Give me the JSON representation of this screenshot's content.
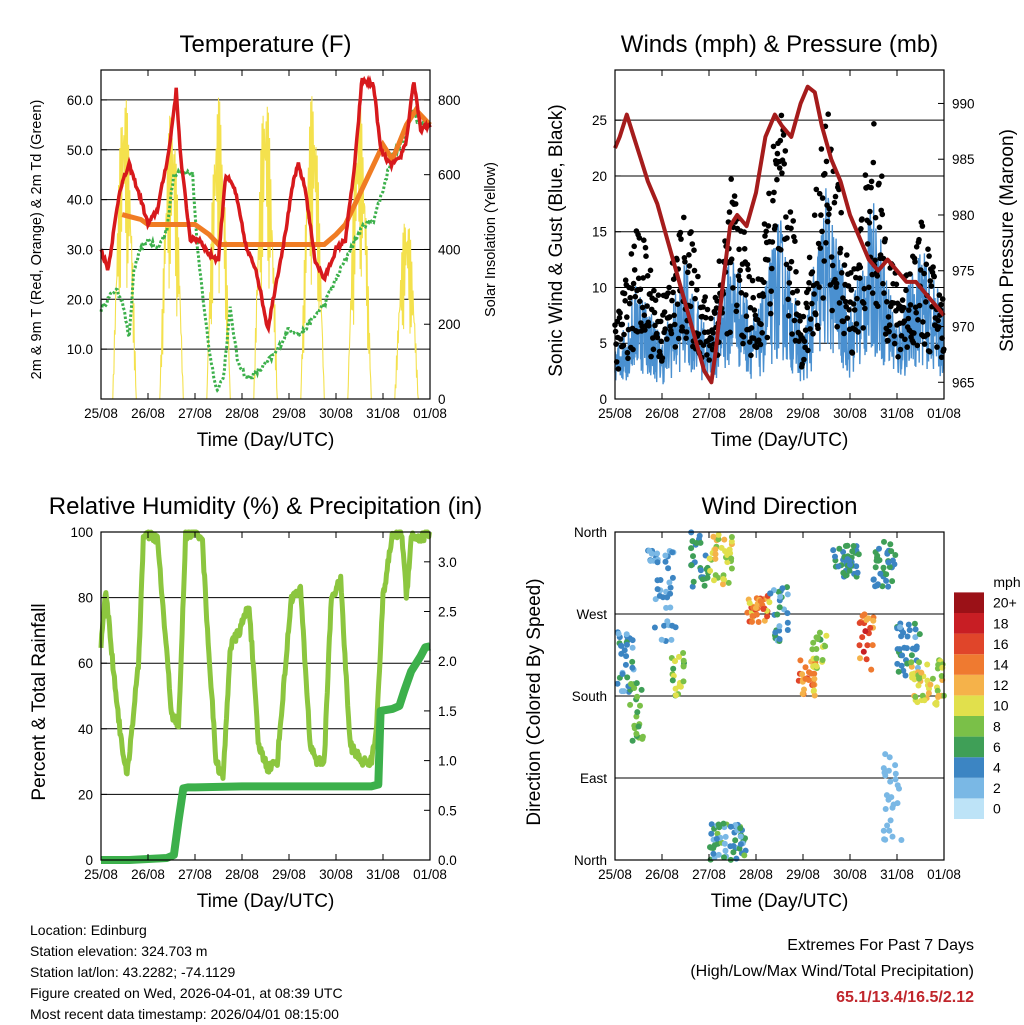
{
  "chart_data": [
    {
      "id": "temperature",
      "type": "line",
      "title": "Temperature (F)",
      "xlabel": "Time (Day/UTC)",
      "ylabel_left": "2m & 9m T (Red, Orange) & 2m Td (Green)",
      "ylabel_right": "Solar Insolation (Yellow)",
      "x_ticks": [
        "25/08",
        "26/08",
        "27/08",
        "28/08",
        "29/08",
        "30/08",
        "31/08",
        "01/08"
      ],
      "ylim": [
        0,
        66
      ],
      "y_ticks": [
        "10.0",
        "20.0",
        "30.0",
        "40.0",
        "50.0",
        "60.0"
      ],
      "y_tick_values": [
        10,
        20,
        30,
        40,
        50,
        60
      ],
      "y2lim": [
        0,
        880
      ],
      "y2_ticks": [
        "0",
        "200",
        "400",
        "600",
        "800"
      ],
      "y2_tick_values": [
        0,
        200,
        400,
        600,
        800
      ],
      "series": [
        {
          "name": "2m T",
          "color": "#d7191c",
          "x": [
            0,
            0.15,
            0.4,
            0.6,
            0.85,
            1.0,
            1.2,
            1.45,
            1.6,
            1.7,
            1.9,
            2.1,
            2.3,
            2.5,
            2.65,
            2.85,
            3.1,
            3.3,
            3.55,
            3.7,
            3.9,
            4.1,
            4.2,
            4.35,
            4.55,
            4.75,
            5.0,
            5.2,
            5.4,
            5.55,
            5.8,
            5.95,
            6.15,
            6.35,
            6.5,
            6.65,
            6.8,
            7.0
          ],
          "values": [
            30,
            26,
            42,
            47,
            40,
            35,
            38,
            50,
            62,
            48,
            32,
            32,
            29,
            28,
            45,
            42,
            30,
            26,
            14,
            22,
            32,
            44,
            47,
            42,
            28,
            24,
            30,
            32,
            47,
            64,
            63,
            50,
            47,
            48,
            52,
            64,
            54,
            55
          ]
        },
        {
          "name": "9m T",
          "color": "#f07c23",
          "x": [
            0.45,
            0.85,
            1.0,
            2.0,
            2.3,
            2.5,
            4.75,
            5.0,
            5.2,
            6.0,
            6.2,
            6.5,
            6.7,
            7.0
          ],
          "values": [
            37,
            36,
            35,
            35,
            33,
            31,
            31,
            33,
            35,
            51,
            48,
            55,
            58,
            55
          ]
        },
        {
          "name": "2m Td",
          "color": "#3cb04b",
          "x": [
            0,
            0.15,
            0.3,
            0.45,
            0.6,
            0.7,
            0.85,
            1.0,
            1.2,
            1.4,
            1.55,
            1.7,
            1.95,
            2.05,
            2.2,
            2.3,
            2.45,
            2.6,
            2.75,
            2.9,
            3.1,
            3.4,
            3.7,
            4.0,
            4.25,
            4.5,
            4.75,
            5.0,
            5.3,
            5.6,
            5.8,
            6.0,
            6.2,
            6.45,
            6.6,
            6.8,
            7.0
          ],
          "values": [
            18,
            20,
            22,
            20,
            12,
            26,
            30,
            32,
            30,
            34,
            45,
            46,
            45,
            30,
            18,
            10,
            2,
            4,
            18,
            8,
            4,
            6,
            9,
            14,
            13,
            16,
            19,
            24,
            30,
            35,
            36,
            42,
            49,
            52,
            58,
            55,
            55
          ]
        },
        {
          "name": "Solar Insolation",
          "color": "#f4e14d",
          "x": [
            0.25,
            0.5,
            0.75,
            1.25,
            1.5,
            1.75,
            2.25,
            2.5,
            2.75,
            3.25,
            3.5,
            3.75,
            4.25,
            4.5,
            4.75,
            5.25,
            5.5,
            5.75,
            6.25,
            6.5,
            6.75
          ],
          "values": [
            0,
            830,
            0,
            0,
            780,
            0,
            0,
            810,
            0,
            0,
            830,
            0,
            0,
            820,
            0,
            0,
            790,
            0,
            0,
            500,
            0
          ]
        }
      ]
    },
    {
      "id": "winds",
      "type": "scatter",
      "title": "Winds (mph) & Pressure (mb)",
      "xlabel": "Time (Day/UTC)",
      "ylabel_left": "Sonic Wind & Gust (Blue, Black)",
      "ylabel_right": "Station Pressure (Maroon)",
      "x_ticks": [
        "25/08",
        "26/08",
        "27/08",
        "28/08",
        "29/08",
        "30/08",
        "31/08",
        "01/08"
      ],
      "ylim": [
        0,
        29.5
      ],
      "y_ticks": [
        "0",
        "5",
        "10",
        "15",
        "20",
        "25"
      ],
      "y_tick_values": [
        0,
        5,
        10,
        15,
        20,
        25
      ],
      "y2lim": [
        963.5,
        993
      ],
      "y2_ticks": [
        "965",
        "970",
        "975",
        "980",
        "985",
        "990"
      ],
      "y2_tick_values": [
        965,
        970,
        975,
        980,
        985,
        990
      ],
      "series": [
        {
          "name": "Sonic Wind",
          "color": "#4a90d0",
          "x": [
            0,
            0.5,
            1.0,
            1.5,
            2.0,
            2.5,
            3.0,
            3.5,
            4.0,
            4.5,
            5.0,
            5.5,
            6.0,
            6.5,
            7.0
          ],
          "values": [
            3,
            8,
            4,
            9,
            4,
            10,
            5,
            12,
            4,
            14,
            6,
            13,
            5,
            10,
            6
          ]
        },
        {
          "name": "Gust",
          "color": "#000000",
          "x": [
            0,
            0.5,
            1.0,
            1.5,
            2.0,
            2.5,
            3.0,
            3.5,
            4.0,
            4.5,
            5.0,
            5.5,
            6.0,
            6.5,
            7.0
          ],
          "values": [
            6,
            14,
            8,
            15,
            7,
            18,
            8,
            24,
            7,
            24,
            10,
            22,
            9,
            14,
            8
          ]
        },
        {
          "name": "Station Pressure",
          "color": "#a51c1c",
          "x": [
            0,
            0.1,
            0.25,
            0.4,
            0.55,
            0.7,
            0.9,
            1.1,
            1.3,
            1.5,
            1.7,
            1.9,
            2.05,
            2.15,
            2.3,
            2.45,
            2.6,
            2.8,
            3.0,
            3.2,
            3.4,
            3.55,
            3.75,
            3.95,
            4.1,
            4.25,
            4.4,
            4.6,
            4.8,
            5.0,
            5.2,
            5.4,
            5.6,
            5.8,
            6.0,
            6.2,
            6.4,
            6.6,
            6.8,
            7.0
          ],
          "values": [
            986,
            987,
            989,
            987,
            985,
            983,
            981,
            978,
            975,
            972,
            969,
            966,
            965,
            968,
            974,
            979,
            980,
            979,
            982,
            987,
            989,
            988,
            987,
            990,
            991.5,
            991,
            988,
            985,
            983,
            980,
            978,
            976,
            975,
            976,
            975,
            974,
            974,
            973,
            972,
            971
          ]
        }
      ]
    },
    {
      "id": "humidity",
      "type": "line",
      "title": "Relative Humidity (%) & Precipitation (in)",
      "xlabel": "Time (Day/UTC)",
      "ylabel_left": "Percent & Total Rainfall",
      "x_ticks": [
        "25/08",
        "26/08",
        "27/08",
        "28/08",
        "29/08",
        "30/08",
        "31/08",
        "01/08"
      ],
      "ylim": [
        0,
        100
      ],
      "y_ticks": [
        "0",
        "20",
        "40",
        "60",
        "80",
        "100"
      ],
      "y_tick_values": [
        0,
        20,
        40,
        60,
        80,
        100
      ],
      "y2lim": [
        0,
        3.3
      ],
      "y2_ticks": [
        "0.0",
        "0.5",
        "1.0",
        "1.5",
        "2.0",
        "2.5",
        "3.0"
      ],
      "y2_tick_values": [
        0,
        0.5,
        1.0,
        1.5,
        2.0,
        2.5,
        3.0
      ],
      "series": [
        {
          "name": "Relative Humidity",
          "color": "#8cc63f",
          "x": [
            0,
            0.1,
            0.25,
            0.4,
            0.55,
            0.8,
            0.9,
            1.0,
            1.2,
            1.5,
            1.65,
            1.8,
            1.95,
            2.15,
            2.3,
            2.45,
            2.6,
            2.75,
            2.95,
            3.15,
            3.35,
            3.55,
            3.75,
            4.05,
            4.25,
            4.45,
            4.6,
            4.75,
            4.9,
            5.1,
            5.3,
            5.55,
            5.75,
            5.85,
            6.0,
            6.2,
            6.4,
            6.5,
            6.6,
            6.8,
            7.0
          ],
          "values": [
            65,
            83,
            60,
            40,
            25,
            60,
            98,
            99,
            98,
            45,
            40,
            99,
            100,
            99,
            62,
            30,
            25,
            65,
            70,
            78,
            35,
            28,
            30,
            80,
            82,
            35,
            30,
            30,
            80,
            85,
            35,
            30,
            30,
            38,
            80,
            99,
            100,
            80,
            99,
            98,
            100
          ]
        },
        {
          "name": "Total Rainfall",
          "color": "#3cb04b",
          "x": [
            0,
            0.6,
            1.4,
            1.55,
            1.65,
            1.75,
            1.85,
            2.0,
            3.0,
            4.0,
            5.0,
            5.75,
            5.9,
            5.95,
            6.2,
            6.35,
            6.45,
            6.6,
            6.8,
            6.9,
            7.0
          ],
          "values": [
            0,
            0,
            0.02,
            0.05,
            0.4,
            0.72,
            0.73,
            0.73,
            0.74,
            0.74,
            0.74,
            0.74,
            0.76,
            1.5,
            1.52,
            1.55,
            1.7,
            1.9,
            2.05,
            2.14,
            2.15
          ]
        }
      ]
    },
    {
      "id": "winddir",
      "type": "scatter",
      "title": "Wind Direction",
      "xlabel": "Time (Day/UTC)",
      "ylabel_left": "Direction (Colored By Speed)",
      "x_ticks": [
        "25/08",
        "26/08",
        "27/08",
        "28/08",
        "29/08",
        "30/08",
        "31/08",
        "01/08"
      ],
      "ylim": [
        0,
        360
      ],
      "y_ticks": [
        "North",
        "East",
        "South",
        "West",
        "North"
      ],
      "y_tick_values": [
        0,
        90,
        180,
        270,
        360
      ],
      "legend_title": "mph",
      "legend_labels": [
        "0",
        "2",
        "4",
        "6",
        "8",
        "10",
        "12",
        "14",
        "16",
        "18",
        "20+"
      ],
      "legend_colors": [
        "#bde3f7",
        "#7ab8e5",
        "#3c85c3",
        "#3f9f57",
        "#7ac048",
        "#e1e04c",
        "#f5b24a",
        "#ef7a30",
        "#e0452a",
        "#c81e24",
        "#9b1117"
      ],
      "clusters": [
        {
          "t0": 0.0,
          "t1": 0.45,
          "dir": [
            180,
            250
          ],
          "speed": [
            2,
            6
          ]
        },
        {
          "t0": 0.3,
          "t1": 0.6,
          "dir": [
            130,
            200
          ],
          "speed": [
            6,
            9
          ]
        },
        {
          "t0": 0.7,
          "t1": 1.3,
          "dir": [
            240,
            340
          ],
          "speed": [
            1,
            5
          ]
        },
        {
          "t0": 1.2,
          "t1": 1.5,
          "dir": [
            180,
            230
          ],
          "speed": [
            6,
            11
          ]
        },
        {
          "t0": 1.6,
          "t1": 2.0,
          "dir": [
            300,
            360
          ],
          "speed": [
            3,
            7
          ]
        },
        {
          "t0": 2.0,
          "t1": 2.5,
          "dir": [
            300,
            360
          ],
          "speed": [
            7,
            12
          ]
        },
        {
          "t0": 2.0,
          "t1": 2.8,
          "dir": [
            0,
            40
          ],
          "speed": [
            1,
            8
          ]
        },
        {
          "t0": 2.8,
          "t1": 3.3,
          "dir": [
            260,
            290
          ],
          "speed": [
            10,
            17
          ]
        },
        {
          "t0": 3.3,
          "t1": 3.7,
          "dir": [
            240,
            300
          ],
          "speed": [
            2,
            6
          ]
        },
        {
          "t0": 3.9,
          "t1": 4.3,
          "dir": [
            180,
            220
          ],
          "speed": [
            10,
            16
          ]
        },
        {
          "t0": 4.2,
          "t1": 4.5,
          "dir": [
            210,
            250
          ],
          "speed": [
            6,
            10
          ]
        },
        {
          "t0": 4.6,
          "t1": 5.2,
          "dir": [
            310,
            345
          ],
          "speed": [
            3,
            7
          ]
        },
        {
          "t0": 5.2,
          "t1": 5.5,
          "dir": [
            200,
            270
          ],
          "speed": [
            12,
            18
          ]
        },
        {
          "t0": 5.5,
          "t1": 6.0,
          "dir": [
            300,
            350
          ],
          "speed": [
            3,
            7
          ]
        },
        {
          "t0": 5.7,
          "t1": 6.1,
          "dir": [
            20,
            120
          ],
          "speed": [
            1,
            3
          ]
        },
        {
          "t0": 6.0,
          "t1": 6.5,
          "dir": [
            200,
            260
          ],
          "speed": [
            2,
            6
          ]
        },
        {
          "t0": 6.3,
          "t1": 7.0,
          "dir": [
            170,
            220
          ],
          "speed": [
            7,
            12
          ]
        }
      ]
    }
  ],
  "footer": {
    "location": "Location: Edinburg",
    "elevation": "Station elevation: 324.703 m",
    "latlon": "Station lat/lon: 43.2282; -74.1129",
    "created": "Figure created on Wed, 2026-04-01, at 08:39 UTC",
    "recent": "Most recent data timestamp: 2026/04/01 08:15:00"
  },
  "extremes": {
    "title": "Extremes For Past 7 Days",
    "subtitle": "(High/Low/Max Wind/Total Precipitation)",
    "values": "65.1/13.4/16.5/2.12"
  }
}
